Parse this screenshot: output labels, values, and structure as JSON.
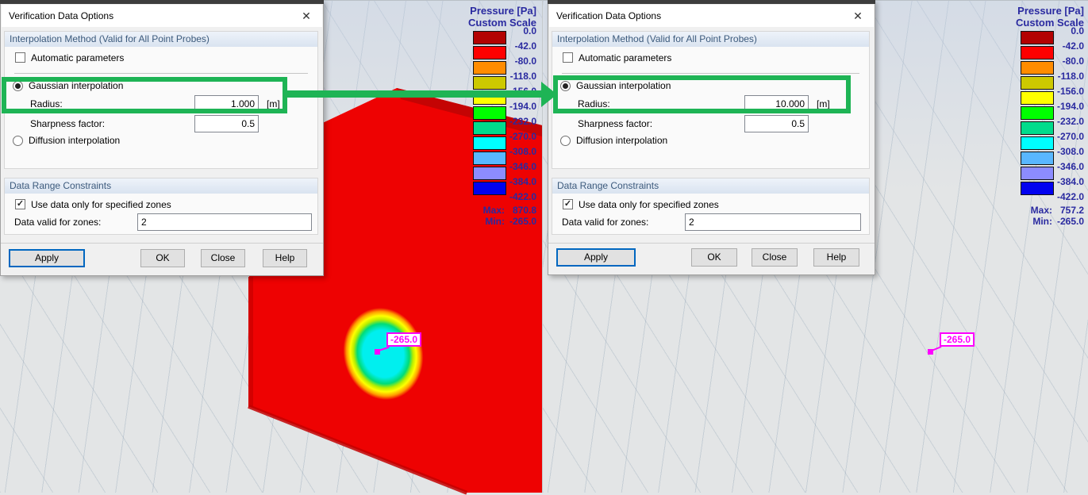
{
  "ui": {
    "check_glyph": "✓",
    "close_glyph": "✕"
  },
  "dialog_left": {
    "title": "Verification Data Options",
    "interp": {
      "header": "Interpolation Method (Valid for All Point Probes)",
      "auto": "Automatic parameters",
      "gaussian": "Gaussian interpolation",
      "radius_label": "Radius:",
      "radius_value": "1.000",
      "radius_unit": "[m]",
      "sharpness_label": "Sharpness factor:",
      "sharpness_value": "0.5",
      "diffusion": "Diffusion interpolation"
    },
    "range": {
      "header": "Data Range Constraints",
      "use_zones": "Use data only for specified zones",
      "zones_label": "Data valid for zones:",
      "zones_value": "2"
    },
    "buttons": {
      "apply": "Apply",
      "ok": "OK",
      "close": "Close",
      "help": "Help"
    }
  },
  "dialog_right": {
    "title": "Verification Data Options",
    "interp": {
      "header": "Interpolation Method (Valid for All Point Probes)",
      "auto": "Automatic parameters",
      "gaussian": "Gaussian interpolation",
      "radius_label": "Radius:",
      "radius_value": "10.000",
      "radius_unit": "[m]",
      "sharpness_label": "Sharpness factor:",
      "sharpness_value": "0.5",
      "diffusion": "Diffusion interpolation"
    },
    "range": {
      "header": "Data Range Constraints",
      "use_zones": "Use data only for specified zones",
      "zones_label": "Data valid for zones:",
      "zones_value": "2"
    },
    "buttons": {
      "apply": "Apply",
      "ok": "OK",
      "close": "Close",
      "help": "Help"
    }
  },
  "legend_left": {
    "title1": "Pressure [Pa]",
    "title2": "Custom Scale",
    "ticks": [
      "0.0",
      "-42.0",
      "-80.0",
      "-118.0",
      "-156.0",
      "-194.0",
      "-232.0",
      "-270.0",
      "-308.0",
      "-346.0",
      "-384.0",
      "-422.0"
    ],
    "colors": [
      "#b30202",
      "#fe0000",
      "#ff8c00",
      "#cdc900",
      "#ffff00",
      "#00ff00",
      "#00dc8c",
      "#00ffff",
      "#59b7ff",
      "#8c8cff",
      "#0202ef"
    ],
    "max_label": "Max:",
    "max_value": "870.8",
    "min_label": "Min:",
    "min_value": "-265.0"
  },
  "legend_right": {
    "title1": "Pressure [Pa]",
    "title2": "Custom Scale",
    "ticks": [
      "0.0",
      "-42.0",
      "-80.0",
      "-118.0",
      "-156.0",
      "-194.0",
      "-232.0",
      "-270.0",
      "-308.0",
      "-346.0",
      "-384.0",
      "-422.0"
    ],
    "colors": [
      "#b30202",
      "#fe0000",
      "#ff8c00",
      "#cdc900",
      "#ffff00",
      "#00ff00",
      "#00dc8c",
      "#00ffff",
      "#59b7ff",
      "#8c8cff",
      "#0202ef"
    ],
    "max_label": "Max:",
    "max_value": "757.2",
    "min_label": "Min:",
    "min_value": "-265.0"
  },
  "probe_left": {
    "value": "-265.0"
  },
  "probe_right": {
    "value": "-265.0"
  },
  "scene": {
    "wall_color": "#ee0202",
    "ridge_color": "#c40404",
    "blob_core_color": "#00efef",
    "cyan_region_color": "#00eeee",
    "probe_color": "#ff00ff",
    "annotation_color": "#1eb455"
  }
}
